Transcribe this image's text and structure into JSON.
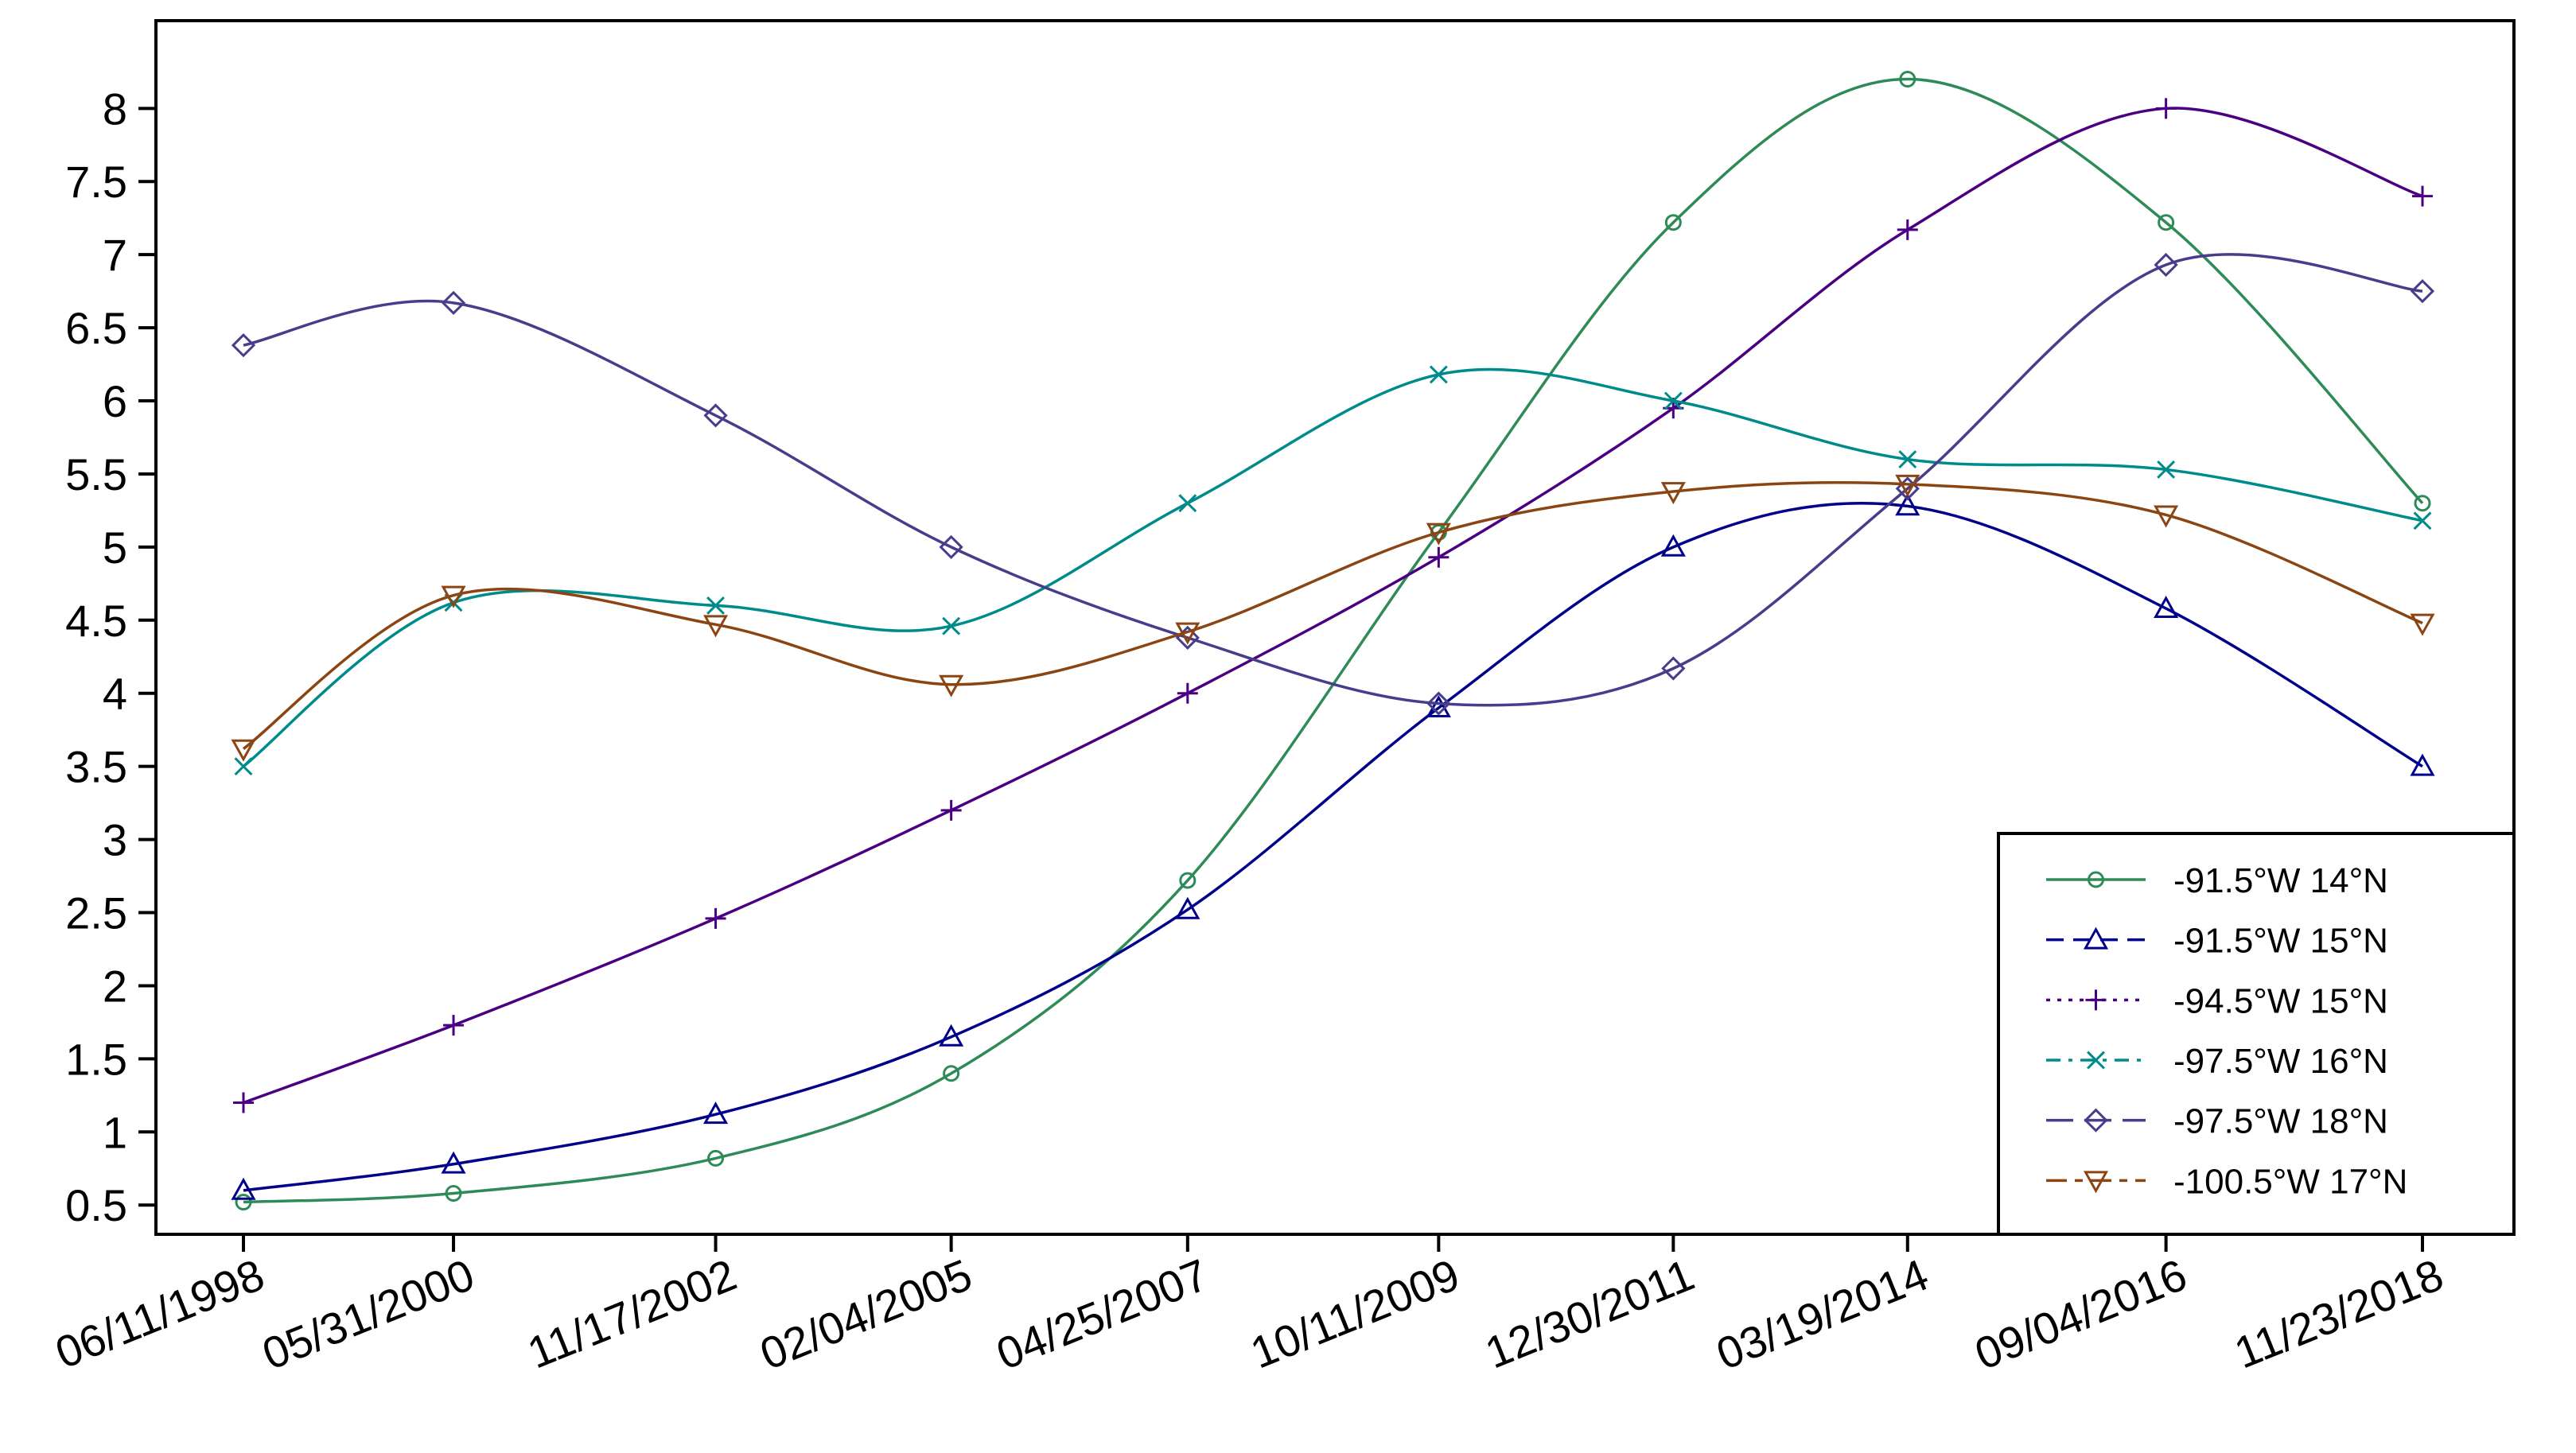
{
  "chart_data": {
    "type": "line",
    "title": "",
    "xlabel": "",
    "ylabel": "",
    "x": [
      "06/11/1998",
      "05/31/2000",
      "11/17/2002",
      "02/04/2005",
      "04/25/2007",
      "10/11/2009",
      "12/30/2011",
      "03/19/2014",
      "09/04/2016",
      "11/23/2018"
    ],
    "y_ticks": [
      "0.5",
      "1",
      "1.5",
      "2",
      "2.5",
      "3",
      "3.5",
      "4",
      "4.5",
      "5",
      "5.5",
      "6",
      "6.5",
      "7",
      "7.5",
      "8"
    ],
    "ylim": [
      0.3,
      8.6
    ],
    "grid": false,
    "legend_position": "bottom-right",
    "series": [
      {
        "name": "-91.5°W 14°N",
        "color": "#2e8b57",
        "marker": "circle",
        "dash": "solid",
        "values": [
          0.52,
          0.58,
          0.82,
          1.4,
          2.72,
          5.1,
          7.22,
          8.2,
          7.22,
          5.3
        ]
      },
      {
        "name": "-91.5°W 15°N",
        "color": "#00008b",
        "marker": "triangle-up",
        "dash": "dashed",
        "values": [
          0.6,
          0.78,
          1.12,
          1.65,
          2.52,
          3.9,
          5.0,
          5.28,
          4.58,
          3.5
        ]
      },
      {
        "name": "-94.5°W 15°N",
        "color": "#4b0082",
        "marker": "plus",
        "dash": "dotted",
        "values": [
          1.2,
          1.73,
          2.46,
          3.2,
          4.0,
          4.93,
          5.95,
          7.17,
          8.0,
          7.4
        ]
      },
      {
        "name": "-97.5°W 16°N",
        "color": "#008b8b",
        "marker": "x",
        "dash": "dashdot",
        "values": [
          3.5,
          4.62,
          4.6,
          4.46,
          5.3,
          6.18,
          6.0,
          5.6,
          5.53,
          5.18
        ]
      },
      {
        "name": "-97.5°W 18°N",
        "color": "#483d8b",
        "marker": "diamond",
        "dash": "longdash",
        "values": [
          6.38,
          6.67,
          5.9,
          5.0,
          4.38,
          3.93,
          4.17,
          5.4,
          6.93,
          6.75
        ]
      },
      {
        "name": "-100.5°W 17°N",
        "color": "#8b4513",
        "marker": "triangle-down",
        "dash": "twodash",
        "values": [
          3.62,
          4.67,
          4.47,
          4.06,
          4.42,
          5.1,
          5.38,
          5.43,
          5.22,
          4.48
        ]
      }
    ]
  }
}
